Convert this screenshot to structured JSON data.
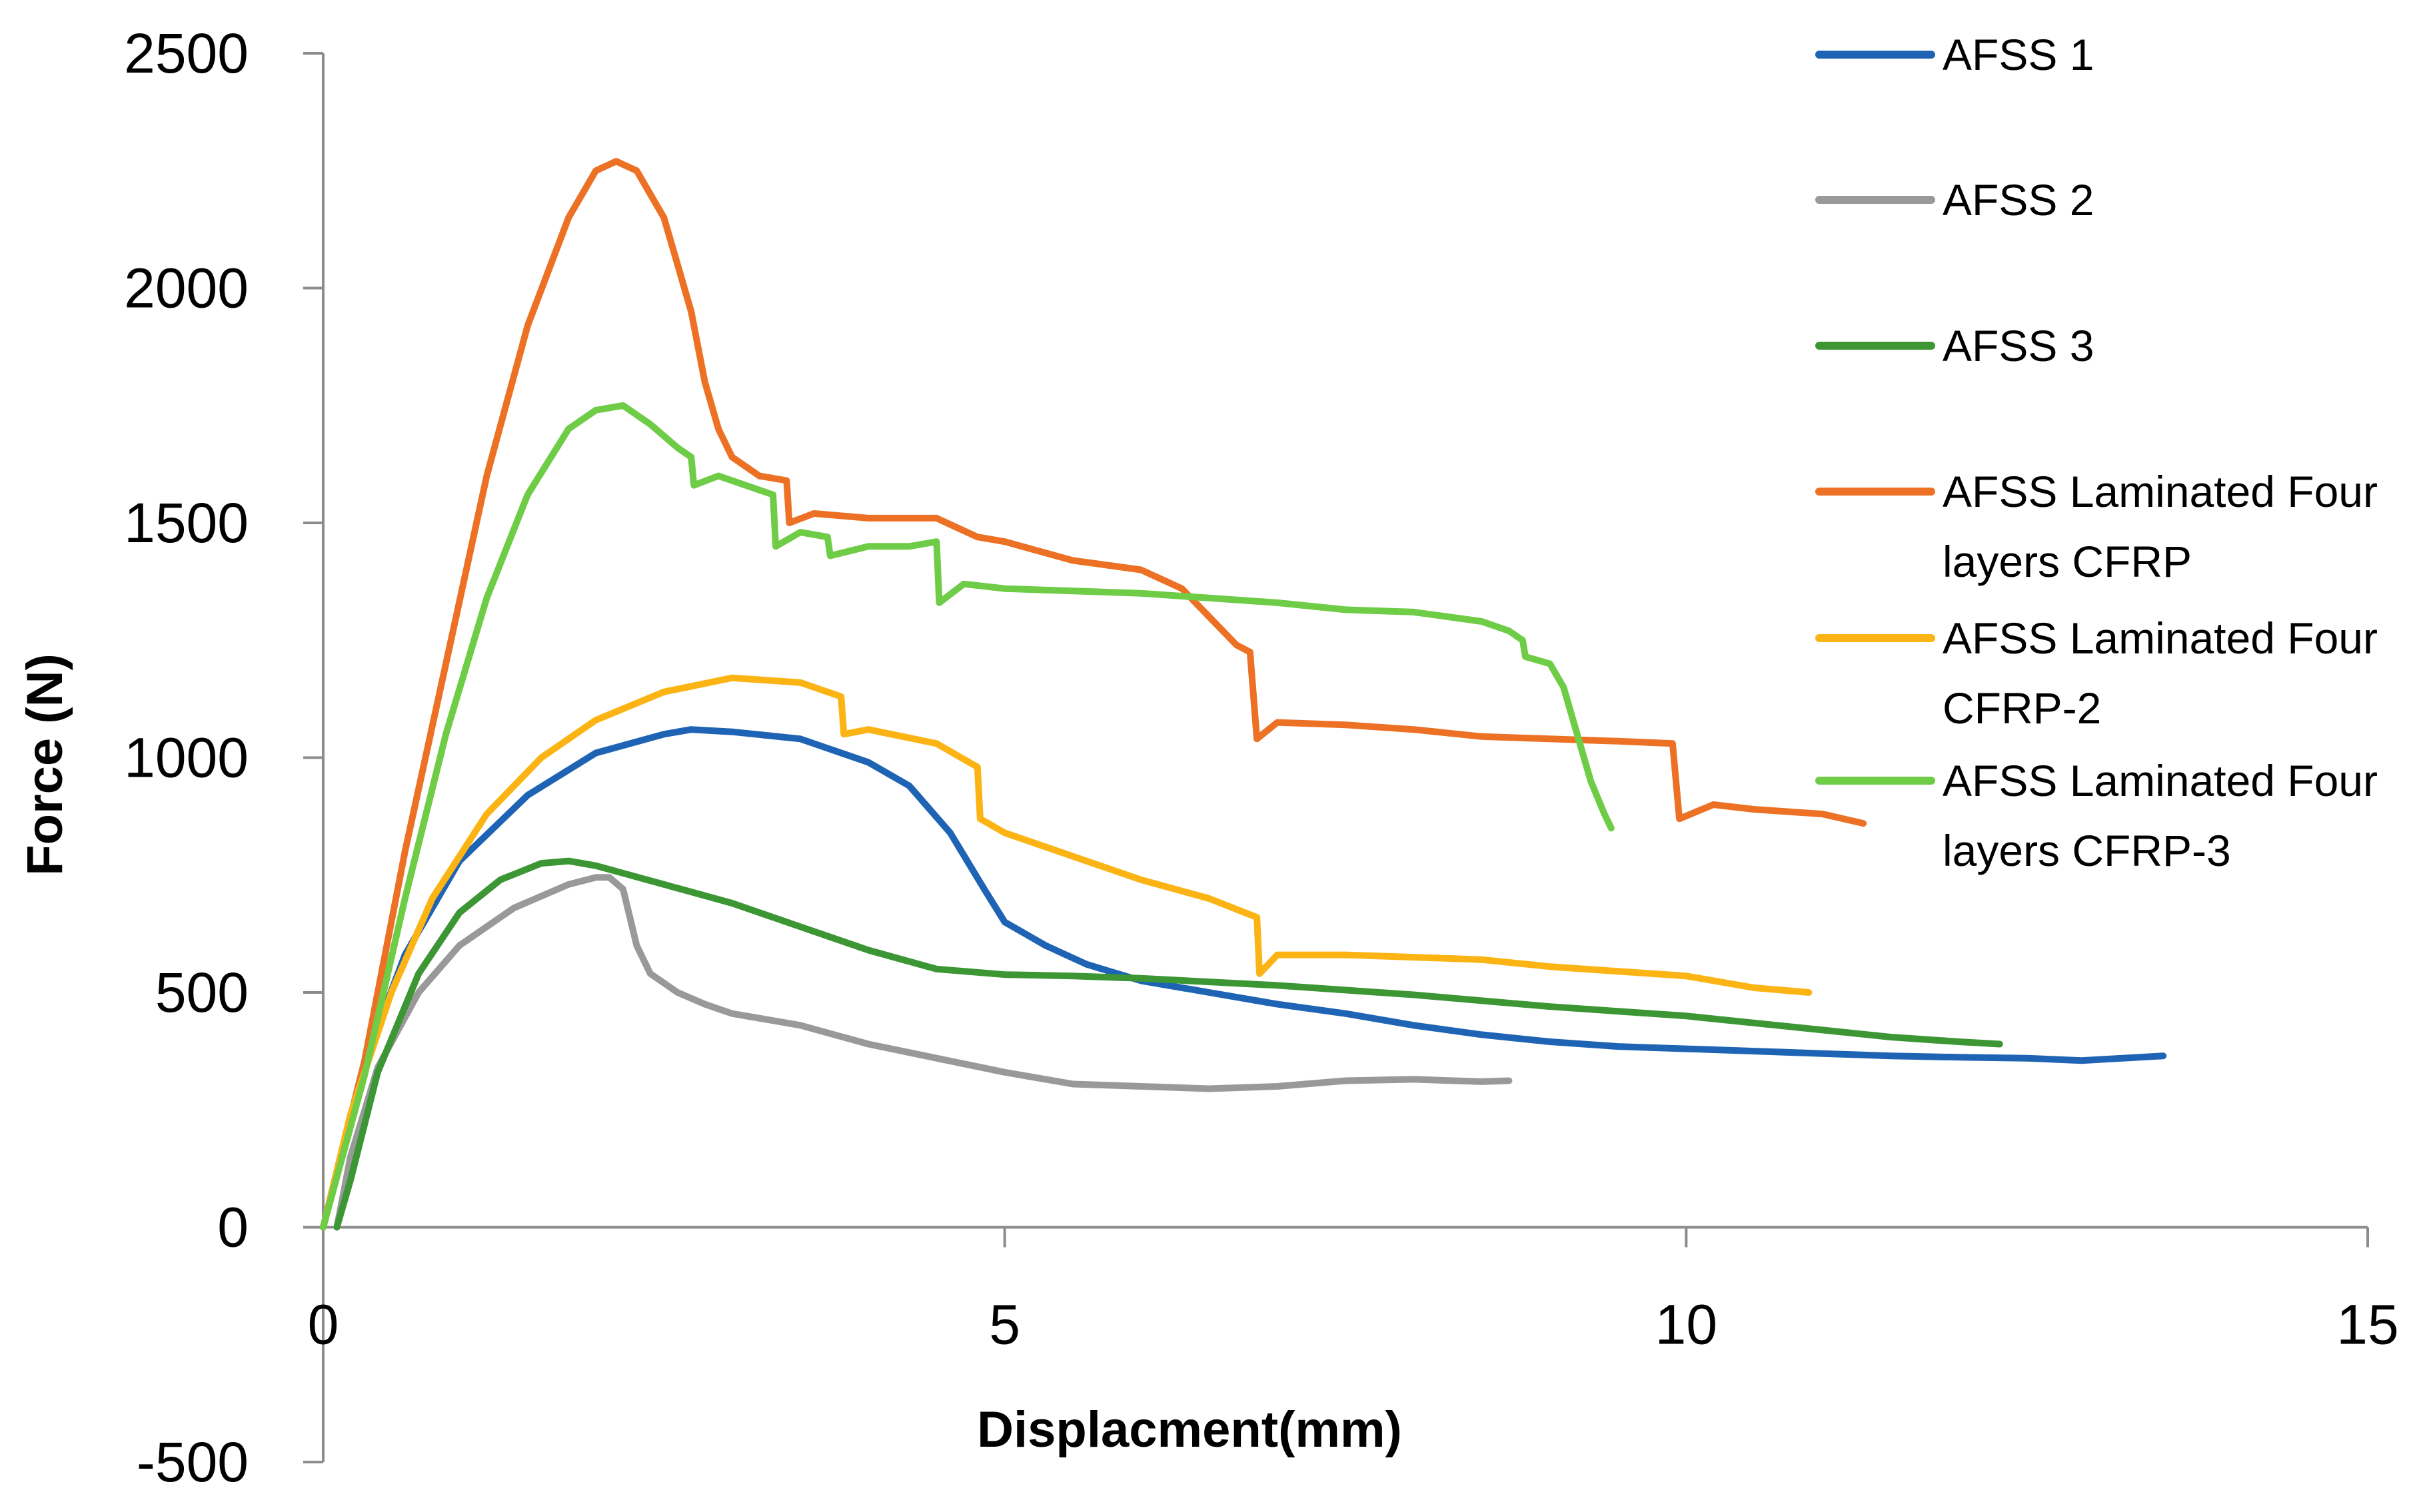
{
  "chart_data": {
    "type": "line",
    "title": "",
    "xlabel": "Displacment(mm)",
    "ylabel": "Force (N)",
    "xlim": [
      0,
      15
    ],
    "ylim": [
      -500,
      2500
    ],
    "xticks": [
      "0",
      "5",
      "10",
      "15"
    ],
    "xtick_values": [
      0,
      5,
      10,
      15
    ],
    "yticks": [
      "2500",
      "2000",
      "1500",
      "1000",
      "500",
      "0",
      "-500"
    ],
    "ytick_values": [
      2500,
      2000,
      1500,
      1000,
      500,
      0,
      -500
    ],
    "grid": false,
    "legend_position": "right",
    "series": [
      {
        "name": "AFSS 1",
        "label_lines": [
          "AFSS 1"
        ],
        "color": "#1f64b4",
        "points": [
          [
            0,
            0
          ],
          [
            0.1,
            120
          ],
          [
            0.3,
            350
          ],
          [
            0.6,
            580
          ],
          [
            1.0,
            780
          ],
          [
            1.5,
            920
          ],
          [
            2.0,
            1010
          ],
          [
            2.5,
            1050
          ],
          [
            2.7,
            1060
          ],
          [
            3.0,
            1055
          ],
          [
            3.5,
            1040
          ],
          [
            4.0,
            990
          ],
          [
            4.3,
            940
          ],
          [
            4.6,
            840
          ],
          [
            4.85,
            720
          ],
          [
            5.0,
            650
          ],
          [
            5.3,
            600
          ],
          [
            5.6,
            560
          ],
          [
            6.0,
            525
          ],
          [
            6.5,
            500
          ],
          [
            7.0,
            475
          ],
          [
            7.5,
            455
          ],
          [
            8.0,
            430
          ],
          [
            8.5,
            410
          ],
          [
            9.0,
            395
          ],
          [
            9.5,
            385
          ],
          [
            10.0,
            380
          ],
          [
            10.5,
            375
          ],
          [
            11.0,
            370
          ],
          [
            11.5,
            365
          ],
          [
            12.0,
            362
          ],
          [
            12.5,
            360
          ],
          [
            12.9,
            355
          ],
          [
            13.2,
            360
          ],
          [
            13.5,
            365
          ]
        ]
      },
      {
        "name": "AFSS 2",
        "label_lines": [
          "AFSS 2"
        ],
        "color": "#999999",
        "points": [
          [
            0.1,
            0
          ],
          [
            0.2,
            150
          ],
          [
            0.4,
            340
          ],
          [
            0.7,
            500
          ],
          [
            1.0,
            600
          ],
          [
            1.4,
            680
          ],
          [
            1.8,
            730
          ],
          [
            2.0,
            745
          ],
          [
            2.1,
            745
          ],
          [
            2.2,
            720
          ],
          [
            2.3,
            600
          ],
          [
            2.4,
            540
          ],
          [
            2.6,
            500
          ],
          [
            2.8,
            475
          ],
          [
            3.0,
            455
          ],
          [
            3.5,
            430
          ],
          [
            4.0,
            390
          ],
          [
            4.5,
            360
          ],
          [
            5.0,
            330
          ],
          [
            5.5,
            305
          ],
          [
            6.0,
            300
          ],
          [
            6.5,
            295
          ],
          [
            7.0,
            300
          ],
          [
            7.5,
            312
          ],
          [
            8.0,
            315
          ],
          [
            8.5,
            310
          ],
          [
            8.7,
            312
          ]
        ]
      },
      {
        "name": "AFSS 3",
        "label_lines": [
          "AFSS 3"
        ],
        "color": "#3c9634",
        "points": [
          [
            0.1,
            0
          ],
          [
            0.2,
            100
          ],
          [
            0.4,
            330
          ],
          [
            0.7,
            540
          ],
          [
            1.0,
            670
          ],
          [
            1.3,
            740
          ],
          [
            1.6,
            775
          ],
          [
            1.8,
            780
          ],
          [
            2.0,
            770
          ],
          [
            2.5,
            730
          ],
          [
            3.0,
            690
          ],
          [
            3.5,
            640
          ],
          [
            4.0,
            590
          ],
          [
            4.5,
            550
          ],
          [
            5.0,
            538
          ],
          [
            5.5,
            535
          ],
          [
            6.0,
            530
          ],
          [
            7.0,
            515
          ],
          [
            8.0,
            495
          ],
          [
            9.0,
            470
          ],
          [
            10.0,
            450
          ],
          [
            11.0,
            420
          ],
          [
            11.5,
            405
          ],
          [
            12.0,
            395
          ],
          [
            12.3,
            390
          ]
        ]
      },
      {
        "name": "AFSS Laminated Four layers CFRP",
        "label_lines": [
          "AFSS Laminated Four",
          "layers CFRP"
        ],
        "color": "#ed7125",
        "points": [
          [
            0,
            0
          ],
          [
            0.3,
            350
          ],
          [
            0.6,
            800
          ],
          [
            0.9,
            1200
          ],
          [
            1.2,
            1600
          ],
          [
            1.5,
            1920
          ],
          [
            1.8,
            2150
          ],
          [
            2.0,
            2250
          ],
          [
            2.15,
            2270
          ],
          [
            2.3,
            2250
          ],
          [
            2.5,
            2150
          ],
          [
            2.6,
            2050
          ],
          [
            2.7,
            1950
          ],
          [
            2.8,
            1800
          ],
          [
            2.9,
            1700
          ],
          [
            3.0,
            1640
          ],
          [
            3.2,
            1600
          ],
          [
            3.4,
            1590
          ],
          [
            3.42,
            1500
          ],
          [
            3.6,
            1520
          ],
          [
            4.0,
            1510
          ],
          [
            4.5,
            1510
          ],
          [
            4.8,
            1470
          ],
          [
            5.0,
            1460
          ],
          [
            5.5,
            1420
          ],
          [
            6.0,
            1400
          ],
          [
            6.3,
            1360
          ],
          [
            6.5,
            1300
          ],
          [
            6.7,
            1240
          ],
          [
            6.8,
            1225
          ],
          [
            6.85,
            1040
          ],
          [
            7.0,
            1075
          ],
          [
            7.5,
            1070
          ],
          [
            8.0,
            1060
          ],
          [
            8.5,
            1045
          ],
          [
            9.0,
            1040
          ],
          [
            9.5,
            1035
          ],
          [
            9.9,
            1030
          ],
          [
            9.95,
            870
          ],
          [
            10.2,
            900
          ],
          [
            10.5,
            890
          ],
          [
            11.0,
            880
          ],
          [
            11.3,
            860
          ]
        ]
      },
      {
        "name": "AFSS Laminated Four CFRP-2",
        "label_lines": [
          "AFSS Laminated Four",
          "CFRP-2"
        ],
        "color": "#fbb414",
        "points": [
          [
            0,
            0
          ],
          [
            0.2,
            240
          ],
          [
            0.5,
            500
          ],
          [
            0.8,
            700
          ],
          [
            1.2,
            880
          ],
          [
            1.6,
            1000
          ],
          [
            2.0,
            1080
          ],
          [
            2.5,
            1140
          ],
          [
            3.0,
            1170
          ],
          [
            3.5,
            1160
          ],
          [
            3.8,
            1130
          ],
          [
            3.82,
            1050
          ],
          [
            4.0,
            1060
          ],
          [
            4.5,
            1030
          ],
          [
            4.8,
            980
          ],
          [
            4.82,
            870
          ],
          [
            5.0,
            840
          ],
          [
            5.5,
            790
          ],
          [
            6.0,
            740
          ],
          [
            6.5,
            700
          ],
          [
            6.85,
            660
          ],
          [
            6.87,
            540
          ],
          [
            7.0,
            580
          ],
          [
            7.5,
            580
          ],
          [
            8.0,
            575
          ],
          [
            8.5,
            570
          ],
          [
            9.0,
            555
          ],
          [
            9.5,
            545
          ],
          [
            10.0,
            535
          ],
          [
            10.5,
            510
          ],
          [
            10.9,
            500
          ]
        ]
      },
      {
        "name": "AFSS Laminated Four layers CFRP-3",
        "label_lines": [
          "AFSS Laminated Four",
          "layers CFRP-3"
        ],
        "color": "#6ecc46",
        "points": [
          [
            0,
            0
          ],
          [
            0.3,
            320
          ],
          [
            0.6,
            700
          ],
          [
            0.9,
            1050
          ],
          [
            1.2,
            1340
          ],
          [
            1.5,
            1560
          ],
          [
            1.8,
            1700
          ],
          [
            2.0,
            1740
          ],
          [
            2.2,
            1750
          ],
          [
            2.4,
            1710
          ],
          [
            2.6,
            1660
          ],
          [
            2.7,
            1640
          ],
          [
            2.72,
            1580
          ],
          [
            2.9,
            1600
          ],
          [
            3.2,
            1570
          ],
          [
            3.3,
            1560
          ],
          [
            3.32,
            1450
          ],
          [
            3.5,
            1480
          ],
          [
            3.7,
            1470
          ],
          [
            3.72,
            1430
          ],
          [
            4.0,
            1450
          ],
          [
            4.3,
            1450
          ],
          [
            4.5,
            1460
          ],
          [
            4.52,
            1330
          ],
          [
            4.7,
            1370
          ],
          [
            5.0,
            1360
          ],
          [
            5.5,
            1355
          ],
          [
            6.0,
            1350
          ],
          [
            6.5,
            1340
          ],
          [
            7.0,
            1330
          ],
          [
            7.5,
            1315
          ],
          [
            8.0,
            1310
          ],
          [
            8.5,
            1290
          ],
          [
            8.7,
            1270
          ],
          [
            8.8,
            1250
          ],
          [
            8.82,
            1215
          ],
          [
            9.0,
            1200
          ],
          [
            9.1,
            1150
          ],
          [
            9.2,
            1050
          ],
          [
            9.3,
            950
          ],
          [
            9.4,
            880
          ],
          [
            9.45,
            850
          ]
        ]
      }
    ]
  }
}
